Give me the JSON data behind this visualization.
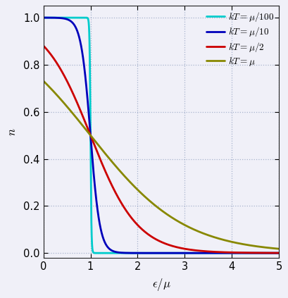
{
  "xlabel": "$\\epsilon/\\mu$",
  "ylabel": "$n$",
  "xlim": [
    0,
    5
  ],
  "ylim": [
    -0.02,
    1.05
  ],
  "xticks": [
    0,
    1,
    2,
    3,
    4,
    5
  ],
  "yticks": [
    0.0,
    0.2,
    0.4,
    0.6,
    0.8,
    1.0
  ],
  "curve_kT_factors": [
    0.01,
    0.1,
    0.5,
    1.0
  ],
  "curve_colors": [
    "#00CCCC",
    "#0000BB",
    "#CC0000",
    "#888800"
  ],
  "curve_labels": [
    "$kT=\\mu/100$",
    "$kT=\\mu/10$",
    "$kT=\\mu/2$",
    "$kT=\\mu$"
  ],
  "curve_lw": [
    2.0,
    2.0,
    2.0,
    2.0
  ],
  "grid_color": "#8899BB",
  "grid_alpha": 0.7,
  "grid_linestyle": ":",
  "grid_lw": 0.9,
  "background_color": "#F0F0F8",
  "legend_fontsize": 9.5,
  "axis_label_fontsize": 12,
  "tick_fontsize": 10.5,
  "figsize": [
    4.09,
    4.23
  ],
  "dpi": 100
}
